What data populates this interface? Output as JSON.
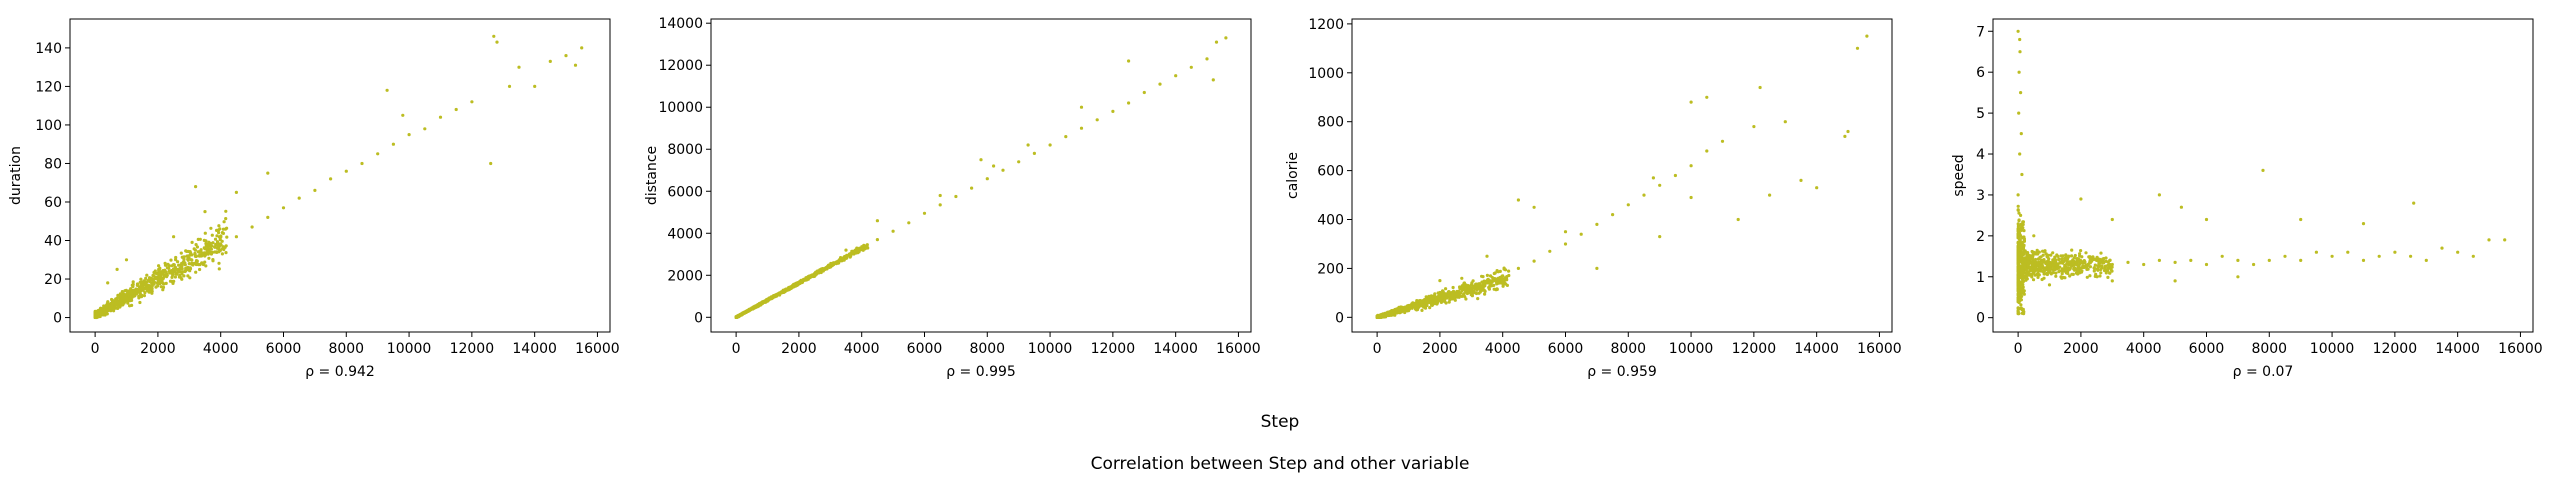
{
  "figure": {
    "xlabel": "Step",
    "title": "Correlation between Step and other variable",
    "point_color": "#bcbd22"
  },
  "chart_data": [
    {
      "type": "scatter",
      "xlabel": "ρ = 0.942",
      "ylabel": "duration",
      "xlim": [
        -800,
        16400
      ],
      "ylim": [
        -7.5,
        155
      ],
      "xticks": [
        0,
        2000,
        4000,
        6000,
        8000,
        10000,
        12000,
        14000,
        16000
      ],
      "yticks": [
        0,
        20,
        40,
        60,
        80,
        100,
        120,
        140
      ],
      "grid": false,
      "trend": "strong positive linear, ~9.5 per 1000 steps, dense cluster below 4000",
      "points": [
        [
          100,
          2
        ],
        [
          300,
          4
        ],
        [
          500,
          6
        ],
        [
          800,
          9
        ],
        [
          1000,
          10
        ],
        [
          1200,
          13
        ],
        [
          1500,
          16
        ],
        [
          1800,
          18
        ],
        [
          2000,
          20
        ],
        [
          2300,
          22
        ],
        [
          2600,
          25
        ],
        [
          3000,
          28
        ],
        [
          3300,
          32
        ],
        [
          3600,
          35
        ],
        [
          4000,
          38
        ],
        [
          4500,
          42
        ],
        [
          5000,
          47
        ],
        [
          5500,
          52
        ],
        [
          6000,
          57
        ],
        [
          6500,
          62
        ],
        [
          7000,
          66
        ],
        [
          7500,
          72
        ],
        [
          8000,
          76
        ],
        [
          8500,
          80
        ],
        [
          9000,
          85
        ],
        [
          9500,
          90
        ],
        [
          10000,
          95
        ],
        [
          10500,
          98
        ],
        [
          11000,
          104
        ],
        [
          11500,
          108
        ],
        [
          12000,
          112
        ],
        [
          12600,
          80
        ],
        [
          12700,
          146
        ],
        [
          12800,
          143
        ],
        [
          13200,
          120
        ],
        [
          13500,
          130
        ],
        [
          14000,
          120
        ],
        [
          14500,
          133
        ],
        [
          15000,
          136
        ],
        [
          15300,
          131
        ],
        [
          15500,
          140
        ],
        [
          1000,
          30
        ],
        [
          2500,
          42
        ],
        [
          3500,
          55
        ],
        [
          3200,
          68
        ],
        [
          4500,
          65
        ],
        [
          5500,
          75
        ],
        [
          9300,
          118
        ],
        [
          9800,
          105
        ],
        [
          400,
          18
        ],
        [
          700,
          25
        ]
      ]
    },
    {
      "type": "scatter",
      "xlabel": "ρ = 0.995",
      "ylabel": "distance",
      "xlim": [
        -800,
        16400
      ],
      "ylim": [
        -700,
        14200
      ],
      "xticks": [
        0,
        2000,
        4000,
        6000,
        8000,
        10000,
        12000,
        14000,
        16000
      ],
      "yticks": [
        0,
        2000,
        4000,
        6000,
        8000,
        10000,
        12000,
        14000
      ],
      "grid": false,
      "trend": "near-perfect linear, ~0.82 m per step",
      "points": [
        [
          100,
          80
        ],
        [
          500,
          400
        ],
        [
          1000,
          800
        ],
        [
          1500,
          1250
        ],
        [
          2000,
          1650
        ],
        [
          2500,
          2050
        ],
        [
          3000,
          2450
        ],
        [
          3500,
          2870
        ],
        [
          4000,
          3300
        ],
        [
          4500,
          3700
        ],
        [
          5000,
          4100
        ],
        [
          5500,
          4500
        ],
        [
          6000,
          4950
        ],
        [
          6500,
          5350
        ],
        [
          7000,
          5750
        ],
        [
          7500,
          6150
        ],
        [
          8000,
          6600
        ],
        [
          8500,
          7000
        ],
        [
          9000,
          7400
        ],
        [
          9500,
          7800
        ],
        [
          10000,
          8200
        ],
        [
          10500,
          8600
        ],
        [
          11000,
          9000
        ],
        [
          11500,
          9400
        ],
        [
          12000,
          9800
        ],
        [
          12500,
          10200
        ],
        [
          13000,
          10700
        ],
        [
          13500,
          11100
        ],
        [
          14000,
          11500
        ],
        [
          14500,
          11900
        ],
        [
          15000,
          12300
        ],
        [
          15300,
          13100
        ],
        [
          15600,
          13300
        ],
        [
          15200,
          11300
        ],
        [
          12500,
          12200
        ],
        [
          11000,
          10000
        ],
        [
          9300,
          8200
        ],
        [
          8200,
          7200
        ],
        [
          7800,
          7500
        ],
        [
          6500,
          5800
        ],
        [
          4500,
          4600
        ],
        [
          3500,
          3200
        ]
      ]
    },
    {
      "type": "scatter",
      "xlabel": "ρ = 0.959",
      "ylabel": "calorie",
      "xlim": [
        -800,
        16400
      ],
      "ylim": [
        -60,
        1220
      ],
      "xticks": [
        0,
        2000,
        4000,
        6000,
        8000,
        10000,
        12000,
        14000,
        16000
      ],
      "yticks": [
        0,
        200,
        400,
        600,
        800,
        1000,
        1200
      ],
      "grid": false,
      "trend": "positive, fanning out at higher step counts",
      "points": [
        [
          100,
          5
        ],
        [
          500,
          20
        ],
        [
          1000,
          40
        ],
        [
          1500,
          60
        ],
        [
          2000,
          80
        ],
        [
          2500,
          100
        ],
        [
          3000,
          120
        ],
        [
          3500,
          145
        ],
        [
          4000,
          170
        ],
        [
          4500,
          200
        ],
        [
          5000,
          230
        ],
        [
          5500,
          270
        ],
        [
          6000,
          300
        ],
        [
          6500,
          340
        ],
        [
          7000,
          380
        ],
        [
          7500,
          420
        ],
        [
          8000,
          460
        ],
        [
          8500,
          500
        ],
        [
          9000,
          540
        ],
        [
          9500,
          580
        ],
        [
          10000,
          620
        ],
        [
          10500,
          680
        ],
        [
          11000,
          720
        ],
        [
          12000,
          780
        ],
        [
          12200,
          940
        ],
        [
          13000,
          800
        ],
        [
          13500,
          560
        ],
        [
          14000,
          530
        ],
        [
          15000,
          760
        ],
        [
          15300,
          1100
        ],
        [
          15600,
          1150
        ],
        [
          14900,
          740
        ],
        [
          10000,
          880
        ],
        [
          10500,
          900
        ],
        [
          8800,
          570
        ],
        [
          4500,
          480
        ],
        [
          5000,
          450
        ],
        [
          7000,
          200
        ],
        [
          9000,
          330
        ],
        [
          10000,
          490
        ],
        [
          11500,
          400
        ],
        [
          12500,
          500
        ],
        [
          6000,
          350
        ],
        [
          3500,
          250
        ],
        [
          2000,
          150
        ]
      ]
    },
    {
      "type": "scatter",
      "xlabel": "ρ = 0.07",
      "ylabel": "speed",
      "xlim": [
        -800,
        16400
      ],
      "ylim": [
        -0.35,
        7.3
      ],
      "xticks": [
        0,
        2000,
        4000,
        6000,
        8000,
        10000,
        12000,
        14000,
        16000
      ],
      "yticks": [
        0,
        1,
        2,
        3,
        4,
        5,
        6,
        7
      ],
      "grid": false,
      "trend": "wide spread near zero steps, settling around 1.3",
      "points": [
        [
          0,
          7.0
        ],
        [
          50,
          6.8
        ],
        [
          60,
          6.5
        ],
        [
          30,
          6.0
        ],
        [
          80,
          5.5
        ],
        [
          20,
          5.0
        ],
        [
          100,
          4.5
        ],
        [
          50,
          4.0
        ],
        [
          120,
          3.5
        ],
        [
          0,
          3.0
        ],
        [
          80,
          2.5
        ],
        [
          150,
          2.2
        ],
        [
          0,
          0.1
        ],
        [
          50,
          0.5
        ],
        [
          100,
          1.0
        ],
        [
          200,
          1.2
        ],
        [
          300,
          1.5
        ],
        [
          500,
          2.0
        ],
        [
          800,
          1.4
        ],
        [
          1000,
          1.3
        ],
        [
          1500,
          1.2
        ],
        [
          2000,
          1.35
        ],
        [
          2500,
          1.4
        ],
        [
          3000,
          1.3
        ],
        [
          3500,
          1.35
        ],
        [
          4000,
          1.3
        ],
        [
          4500,
          1.4
        ],
        [
          5000,
          1.35
        ],
        [
          5500,
          1.4
        ],
        [
          6000,
          1.3
        ],
        [
          6500,
          1.5
        ],
        [
          7000,
          1.4
        ],
        [
          7500,
          1.3
        ],
        [
          7800,
          3.6
        ],
        [
          8000,
          1.4
        ],
        [
          8500,
          1.5
        ],
        [
          9000,
          1.4
        ],
        [
          9500,
          1.6
        ],
        [
          10000,
          1.5
        ],
        [
          10500,
          1.6
        ],
        [
          11000,
          1.4
        ],
        [
          11500,
          1.5
        ],
        [
          12000,
          1.6
        ],
        [
          12500,
          1.5
        ],
        [
          12600,
          2.8
        ],
        [
          13000,
          1.4
        ],
        [
          13500,
          1.7
        ],
        [
          14000,
          1.6
        ],
        [
          14500,
          1.5
        ],
        [
          15000,
          1.9
        ],
        [
          15500,
          1.9
        ],
        [
          4500,
          3.0
        ],
        [
          5200,
          2.7
        ],
        [
          3000,
          2.4
        ],
        [
          2000,
          2.9
        ],
        [
          6000,
          2.4
        ],
        [
          9000,
          2.4
        ],
        [
          11000,
          2.3
        ],
        [
          1000,
          0.8
        ],
        [
          3000,
          0.9
        ],
        [
          5000,
          0.9
        ],
        [
          7000,
          1.0
        ]
      ]
    }
  ]
}
